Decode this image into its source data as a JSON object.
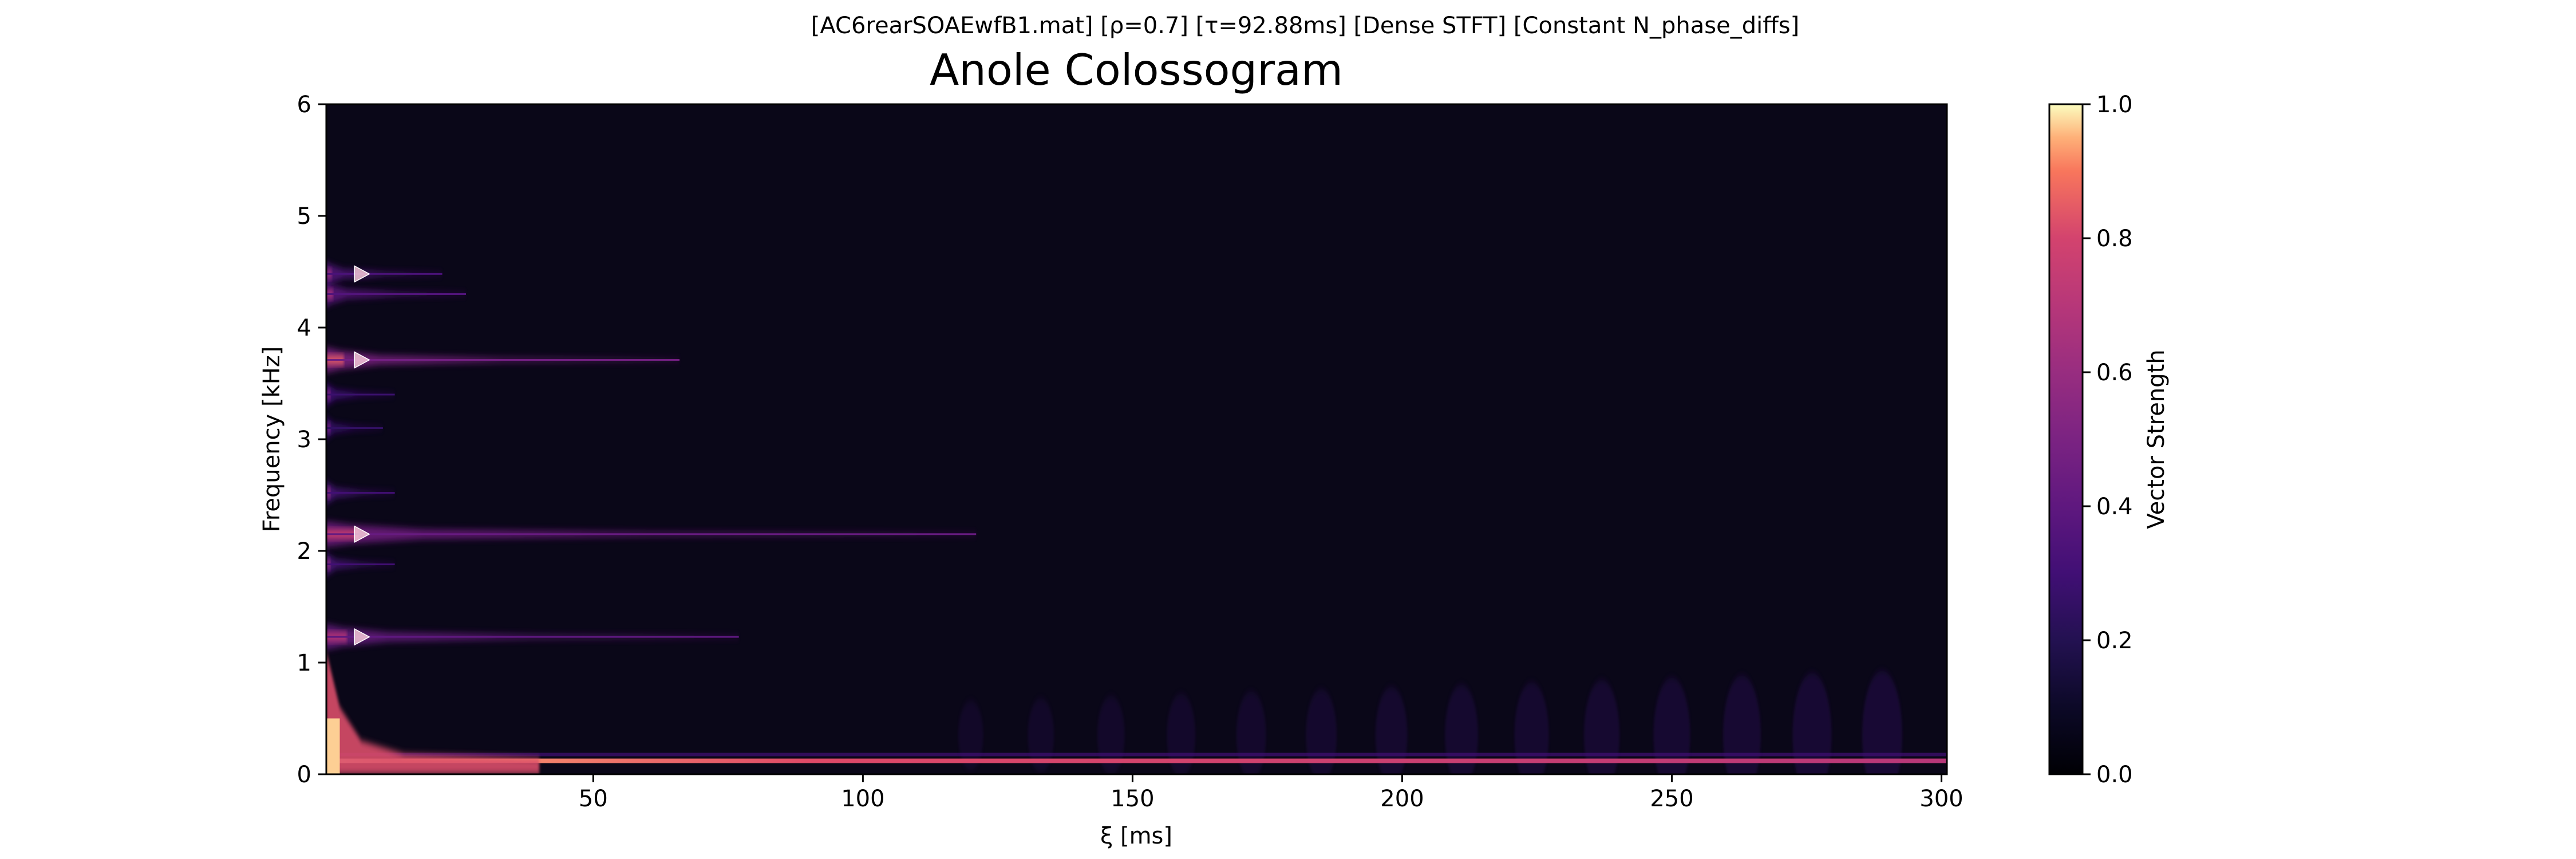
{
  "chart_data": {
    "type": "heatmap",
    "suptitle": "[AC6rearSOAEwfB1.mat]   [ρ=0.7]   [τ=92.88ms]   [Dense STFT]   [Constant N_phase_diffs]",
    "title": "Anole Colossogram",
    "xlabel": "ξ [ms]",
    "ylabel": "Frequency [kHz]",
    "xlim": [
      0.5,
      301
    ],
    "ylim": [
      0,
      6
    ],
    "xticks": [
      50,
      100,
      150,
      200,
      250,
      300
    ],
    "yticks": [
      0,
      1,
      2,
      3,
      4,
      5,
      6
    ],
    "colormap": "magma",
    "colorbar": {
      "label": "Vector Strength",
      "range": [
        0.0,
        1.0
      ],
      "ticks": [
        "0.0",
        "0.2",
        "0.4",
        "0.6",
        "0.8",
        "1.0"
      ]
    },
    "peak_markers_khz": [
      1.23,
      2.15,
      3.71,
      4.48
    ],
    "marker_xi_ms": 7,
    "lines": [
      {
        "freq_khz": 1.23,
        "strength": 0.72,
        "decay_ms": 35
      },
      {
        "freq_khz": 1.88,
        "strength": 0.55,
        "decay_ms": 6
      },
      {
        "freq_khz": 2.15,
        "strength": 0.78,
        "decay_ms": 55
      },
      {
        "freq_khz": 2.52,
        "strength": 0.55,
        "decay_ms": 6
      },
      {
        "freq_khz": 3.1,
        "strength": 0.45,
        "decay_ms": 5
      },
      {
        "freq_khz": 3.4,
        "strength": 0.5,
        "decay_ms": 6
      },
      {
        "freq_khz": 3.71,
        "strength": 0.85,
        "decay_ms": 30
      },
      {
        "freq_khz": 4.3,
        "strength": 0.65,
        "decay_ms": 12
      },
      {
        "freq_khz": 4.48,
        "strength": 0.6,
        "decay_ms": 10
      }
    ],
    "low_freq_band": {
      "freq_khz": 0.12,
      "strength": 0.85
    }
  }
}
